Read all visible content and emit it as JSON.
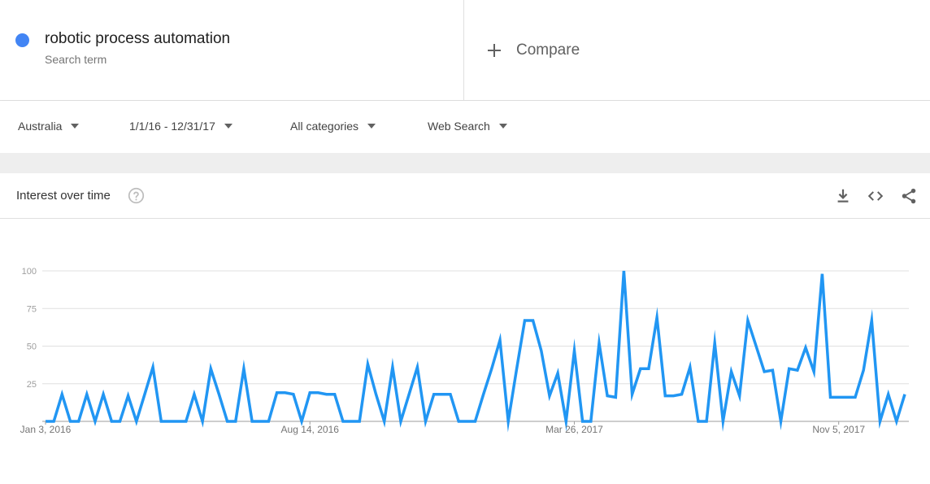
{
  "search_term": {
    "label": "robotic process automation",
    "sublabel": "Search term",
    "color": "#4285f4"
  },
  "compare": {
    "icon": "plus-icon",
    "label": "Compare"
  },
  "filters": {
    "region": "Australia",
    "date_range": "1/1/16 - 12/31/17",
    "category": "All categories",
    "search_type": "Web Search"
  },
  "card": {
    "title": "Interest over time",
    "icons": [
      "help-icon",
      "download-icon",
      "embed-icon",
      "share-icon"
    ]
  },
  "chart_data": {
    "type": "line",
    "line_color": "#2196f3",
    "grid": true,
    "ylim": [
      0,
      100
    ],
    "y_ticks": [
      "100",
      "75",
      "50",
      "25"
    ],
    "x_tick_labels": [
      "Jan 3, 2016",
      "Aug 14, 2016",
      "Mar 26, 2017",
      "Nov 5, 2017"
    ],
    "series": [
      {
        "values": [
          0,
          0,
          18,
          0,
          0,
          18,
          0,
          18,
          0,
          0,
          17,
          0,
          18,
          36,
          0,
          0,
          0,
          0,
          18,
          0,
          35,
          18,
          0,
          0,
          35,
          0,
          0,
          0,
          19,
          19,
          18,
          0,
          19,
          19,
          18,
          18,
          0,
          0,
          0,
          38,
          18,
          0,
          36,
          0,
          18,
          36,
          0,
          18,
          18,
          18,
          0,
          0,
          0,
          18,
          35,
          54,
          0,
          34,
          67,
          67,
          47,
          17,
          32,
          0,
          47,
          0,
          0,
          52,
          17,
          16,
          100,
          18,
          35,
          35,
          69,
          17,
          17,
          18,
          36,
          0,
          0,
          52,
          0,
          33,
          17,
          67,
          50,
          33,
          34,
          0,
          35,
          34,
          49,
          33,
          98,
          16,
          16,
          16,
          16,
          34,
          67,
          0,
          18,
          0,
          18
        ]
      }
    ]
  }
}
